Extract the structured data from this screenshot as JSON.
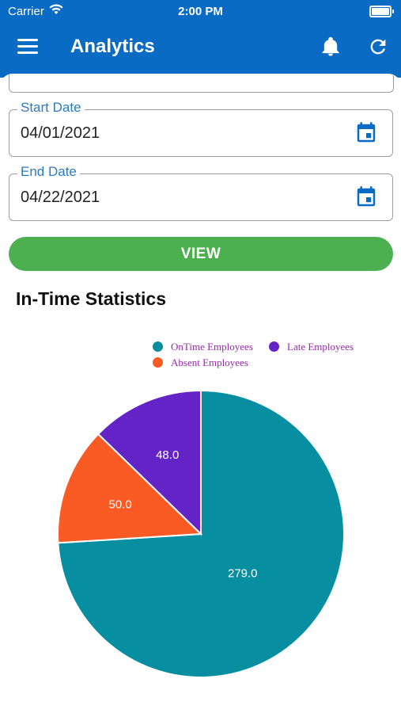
{
  "status_bar": {
    "carrier": "Carrier",
    "time": "2:00 PM"
  },
  "header": {
    "title": "Analytics"
  },
  "form": {
    "start_date": {
      "label": "Start Date",
      "value": "04/01/2021"
    },
    "end_date": {
      "label": "End Date",
      "value": "04/22/2021"
    },
    "view_button": "VIEW"
  },
  "section_title": "In-Time Statistics",
  "colors": {
    "primary": "#0a6bc4",
    "view_button": "#4caf50",
    "ontime": "#078fa1",
    "late": "#6423c7",
    "absent": "#fa5a23"
  },
  "chart_data": {
    "type": "pie",
    "legend_position": "top-right",
    "slices": [
      {
        "name": "OnTime Employees",
        "value": 279.0,
        "label": "279.0",
        "color": "#078fa1"
      },
      {
        "name": "Absent Employees",
        "value": 50.0,
        "label": "50.0",
        "color": "#fa5a23"
      },
      {
        "name": "Late Employees",
        "value": 48.0,
        "label": "48.0",
        "color": "#6423c7"
      }
    ],
    "legend": [
      {
        "label": "OnTime Employees",
        "color": "#078fa1"
      },
      {
        "label": "Late Employees",
        "color": "#6423c7"
      },
      {
        "label": "Absent Employees",
        "color": "#fa5a23"
      }
    ]
  }
}
